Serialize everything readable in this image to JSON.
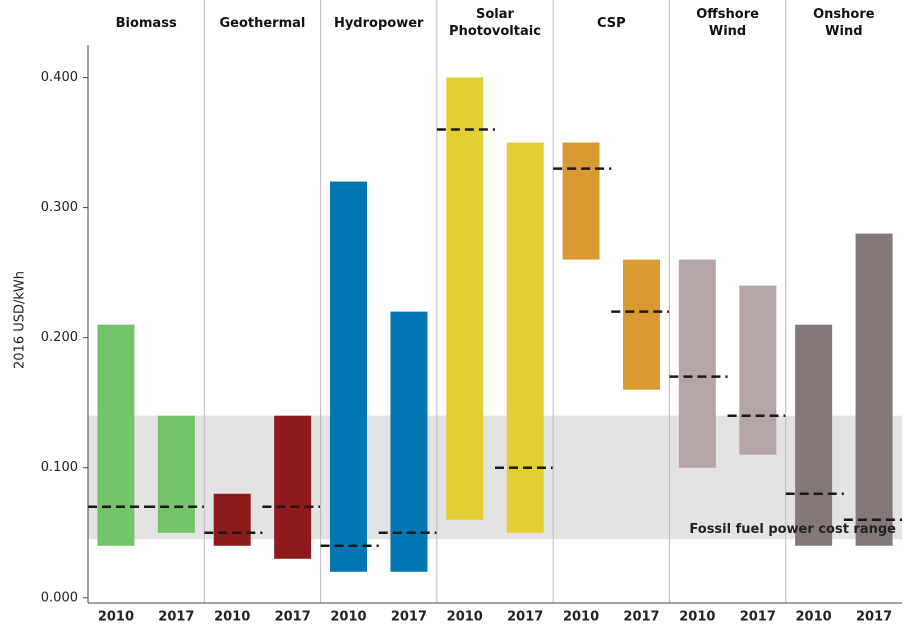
{
  "chart_data": {
    "type": "range_bar",
    "y_label": "2016 USD/kWh",
    "ylim": [
      -0.004,
      0.425
    ],
    "yticks": [
      {
        "value": 0,
        "label": "0.000"
      },
      {
        "value": 0.1,
        "label": "0.100"
      },
      {
        "value": 0.2,
        "label": "0.200"
      },
      {
        "value": 0.3,
        "label": "0.300"
      },
      {
        "value": 0.4,
        "label": "0.400"
      }
    ],
    "average_color": "#1a1a1a",
    "band": {
      "label": "Fossil fuel power cost range",
      "low": 0.045,
      "high": 0.14,
      "color": "#e3e3e3"
    },
    "groups": [
      {
        "name": "Biomass",
        "color": "#74c26a",
        "bars": [
          {
            "year": "2010",
            "low": 0.04,
            "high": 0.21,
            "average": 0.07
          },
          {
            "year": "2017",
            "low": 0.05,
            "high": 0.14,
            "average": 0.07
          }
        ]
      },
      {
        "name": "Geothermal",
        "color": "#8e1a1c",
        "bars": [
          {
            "year": "2010",
            "low": 0.04,
            "high": 0.08,
            "average": 0.05
          },
          {
            "year": "2017",
            "low": 0.03,
            "high": 0.14,
            "average": 0.07
          }
        ]
      },
      {
        "name": "Hydropower",
        "color": "#0077b0",
        "bars": [
          {
            "year": "2010",
            "low": 0.02,
            "high": 0.32,
            "average": 0.04
          },
          {
            "year": "2017",
            "low": 0.02,
            "high": 0.22,
            "average": 0.05
          }
        ]
      },
      {
        "name": "Solar\nPhotovoltaic",
        "color": "#e3cf33",
        "bars": [
          {
            "year": "2010",
            "low": 0.06,
            "high": 0.4,
            "average": 0.36
          },
          {
            "year": "2017",
            "low": 0.05,
            "high": 0.35,
            "average": 0.1
          }
        ]
      },
      {
        "name": "CSP",
        "color": "#d99a32",
        "bars": [
          {
            "year": "2010",
            "low": 0.26,
            "high": 0.35,
            "average": 0.33
          },
          {
            "year": "2017",
            "low": 0.16,
            "high": 0.26,
            "average": 0.22
          }
        ]
      },
      {
        "name": "Offshore\nWind",
        "color": "#b5a5a7",
        "bars": [
          {
            "year": "2010",
            "low": 0.1,
            "high": 0.26,
            "average": 0.17
          },
          {
            "year": "2017",
            "low": 0.11,
            "high": 0.24,
            "average": 0.14
          }
        ]
      },
      {
        "name": "Onshore\nWind",
        "color": "#857778",
        "bars": [
          {
            "year": "2010",
            "low": 0.04,
            "high": 0.21,
            "average": 0.08
          },
          {
            "year": "2017",
            "low": 0.04,
            "high": 0.28,
            "average": 0.06
          }
        ]
      }
    ]
  }
}
